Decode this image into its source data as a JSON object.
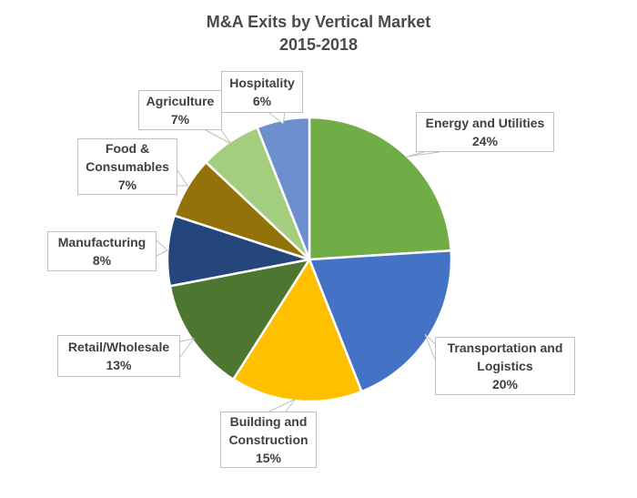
{
  "chart_data": {
    "type": "pie",
    "title": "M&A Exits by Vertical Market",
    "subtitle": "2015-2018",
    "start_angle_deg": 0,
    "direction": "clockwise",
    "legend_position": "none",
    "label_style": "callout-boxes-with-leader-wedges",
    "slices": [
      {
        "label": "Energy and Utilities",
        "value": 24,
        "pct": "24%",
        "color": "#70AD47"
      },
      {
        "label": "Transportation and Logistics",
        "value": 20,
        "pct": "20%",
        "color": "#4472C4"
      },
      {
        "label": "Building and Construction",
        "value": 15,
        "pct": "15%",
        "color": "#FFC000"
      },
      {
        "label": "Retail/Wholesale",
        "value": 13,
        "pct": "13%",
        "color": "#4D7731"
      },
      {
        "label": "Manufacturing",
        "value": 8,
        "pct": "8%",
        "color": "#24467D"
      },
      {
        "label": "Food & Consumables",
        "value": 7,
        "pct": "7%",
        "color": "#937309"
      },
      {
        "label": "Agriculture",
        "value": 7,
        "pct": "7%",
        "color": "#A3CE80"
      },
      {
        "label": "Hospitality",
        "value": 6,
        "pct": "6%",
        "color": "#6D8FCE"
      }
    ],
    "colors": {
      "background": "#FFFFFF",
      "slice_stroke": "#FFFFFF",
      "callout_border": "#BFBFBF",
      "label_text": "#404040",
      "title_text": "#4A4A4A"
    }
  }
}
